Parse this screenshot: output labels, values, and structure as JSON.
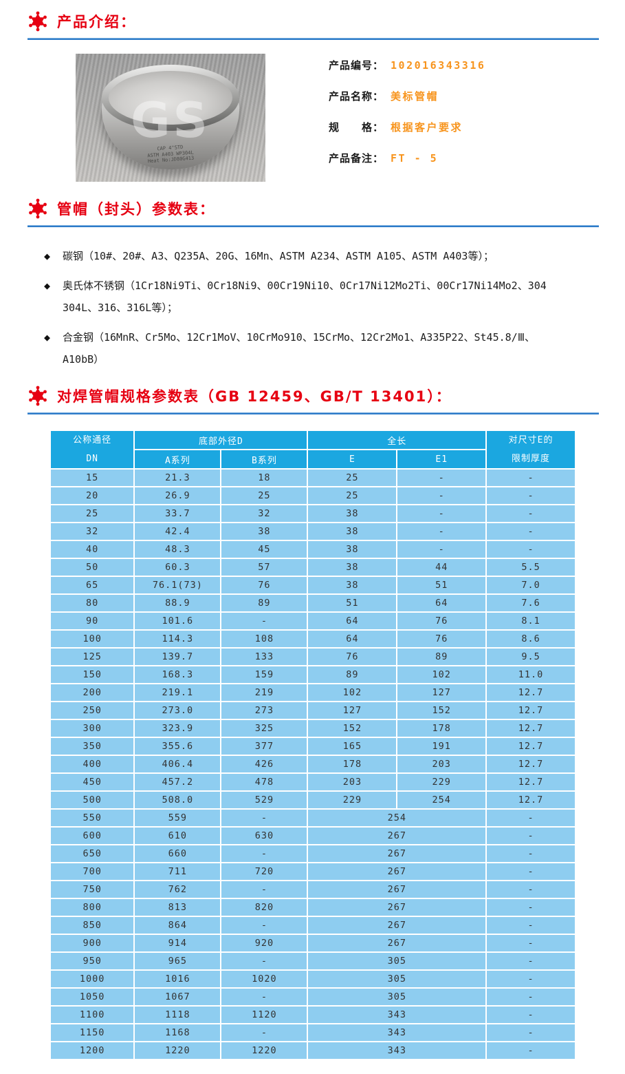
{
  "colors": {
    "accent_red": "#e60012",
    "divider_blue": "#2e7cc9",
    "value_orange": "#f7941d",
    "table_header_bg": "#1ba7e0",
    "table_row_bg": "#8ecdf0"
  },
  "intro": {
    "title": "产品介绍：",
    "photo": {
      "watermark": "GS",
      "engraving": [
        "CAP 4\"STD",
        "ASTM A403 WP304L",
        "Heat No:JD80G413"
      ]
    },
    "fields": [
      {
        "label": "产品编号：",
        "value": "102016343316"
      },
      {
        "label": "产品名称：",
        "value": "美标管帽"
      },
      {
        "label": "规　　格：",
        "value": "根据客户要求"
      },
      {
        "label": "产品备注：",
        "value": "FT - 5"
      }
    ]
  },
  "materials": {
    "title": "管帽（封头）参数表：",
    "marker": "◆",
    "bullets": [
      {
        "lines": [
          "碳钢（10#、20#、A3、Q235A、20G、16Mn、ASTM A234、ASTM A105、ASTM A403等）；"
        ]
      },
      {
        "lines": [
          "奥氏体不锈钢（1Cr18Ni9Ti、0Cr18Ni9、00Cr19Ni10、0Cr17Ni12Mo2Ti、00Cr17Ni14Mo2、304",
          "304L、316、316L等）；"
        ]
      },
      {
        "lines": [
          "合金钢（16MnR、Cr5Mo、12Cr1MoV、10CrMo910、15CrMo、12Cr2Mo1、A335P22、St45.8/Ⅲ、",
          "A10bB）"
        ]
      }
    ]
  },
  "spec": {
    "title": "对焊管帽规格参数表（GB 12459、GB/T 13401）：",
    "table": {
      "headers": {
        "col_dn": [
          "公称通径",
          "DN"
        ],
        "group_d": "底部外径D",
        "a": "A系列",
        "b": "B系列",
        "group_len": "全长",
        "e": "E",
        "e1": "E1",
        "col_t": [
          "对尺寸E的",
          "限制厚度"
        ]
      },
      "rows": [
        {
          "cells": [
            "15",
            "21.3",
            "18",
            "25",
            "-",
            "-"
          ],
          "merge_e": false
        },
        {
          "cells": [
            "20",
            "26.9",
            "25",
            "25",
            "-",
            "-"
          ],
          "merge_e": false
        },
        {
          "cells": [
            "25",
            "33.7",
            "32",
            "38",
            "-",
            "-"
          ],
          "merge_e": false
        },
        {
          "cells": [
            "32",
            "42.4",
            "38",
            "38",
            "-",
            "-"
          ],
          "merge_e": false
        },
        {
          "cells": [
            "40",
            "48.3",
            "45",
            "38",
            "-",
            "-"
          ],
          "merge_e": false
        },
        {
          "cells": [
            "50",
            "60.3",
            "57",
            "38",
            "44",
            "5.5"
          ],
          "merge_e": false
        },
        {
          "cells": [
            "65",
            "76.1(73)",
            "76",
            "38",
            "51",
            "7.0"
          ],
          "merge_e": false
        },
        {
          "cells": [
            "80",
            "88.9",
            "89",
            "51",
            "64",
            "7.6"
          ],
          "merge_e": false
        },
        {
          "cells": [
            "90",
            "101.6",
            "-",
            "64",
            "76",
            "8.1"
          ],
          "merge_e": false
        },
        {
          "cells": [
            "100",
            "114.3",
            "108",
            "64",
            "76",
            "8.6"
          ],
          "merge_e": false
        },
        {
          "cells": [
            "125",
            "139.7",
            "133",
            "76",
            "89",
            "9.5"
          ],
          "merge_e": false
        },
        {
          "cells": [
            "150",
            "168.3",
            "159",
            "89",
            "102",
            "11.0"
          ],
          "merge_e": false
        },
        {
          "cells": [
            "200",
            "219.1",
            "219",
            "102",
            "127",
            "12.7"
          ],
          "merge_e": false
        },
        {
          "cells": [
            "250",
            "273.0",
            "273",
            "127",
            "152",
            "12.7"
          ],
          "merge_e": false
        },
        {
          "cells": [
            "300",
            "323.9",
            "325",
            "152",
            "178",
            "12.7"
          ],
          "merge_e": false
        },
        {
          "cells": [
            "350",
            "355.6",
            "377",
            "165",
            "191",
            "12.7"
          ],
          "merge_e": false
        },
        {
          "cells": [
            "400",
            "406.4",
            "426",
            "178",
            "203",
            "12.7"
          ],
          "merge_e": false
        },
        {
          "cells": [
            "450",
            "457.2",
            "478",
            "203",
            "229",
            "12.7"
          ],
          "merge_e": false
        },
        {
          "cells": [
            "500",
            "508.0",
            "529",
            "229",
            "254",
            "12.7"
          ],
          "merge_e": false
        },
        {
          "cells": [
            "550",
            "559",
            "-",
            "254",
            "-"
          ],
          "merge_e": true
        },
        {
          "cells": [
            "600",
            "610",
            "630",
            "267",
            "-"
          ],
          "merge_e": true
        },
        {
          "cells": [
            "650",
            "660",
            "-",
            "267",
            "-"
          ],
          "merge_e": true
        },
        {
          "cells": [
            "700",
            "711",
            "720",
            "267",
            "-"
          ],
          "merge_e": true
        },
        {
          "cells": [
            "750",
            "762",
            "-",
            "267",
            "-"
          ],
          "merge_e": true
        },
        {
          "cells": [
            "800",
            "813",
            "820",
            "267",
            "-"
          ],
          "merge_e": true
        },
        {
          "cells": [
            "850",
            "864",
            "-",
            "267",
            "-"
          ],
          "merge_e": true
        },
        {
          "cells": [
            "900",
            "914",
            "920",
            "267",
            "-"
          ],
          "merge_e": true
        },
        {
          "cells": [
            "950",
            "965",
            "-",
            "305",
            "-"
          ],
          "merge_e": true
        },
        {
          "cells": [
            "1000",
            "1016",
            "1020",
            "305",
            "-"
          ],
          "merge_e": true
        },
        {
          "cells": [
            "1050",
            "1067",
            "-",
            "305",
            "-"
          ],
          "merge_e": true
        },
        {
          "cells": [
            "1100",
            "1118",
            "1120",
            "343",
            "-"
          ],
          "merge_e": true
        },
        {
          "cells": [
            "1150",
            "1168",
            "-",
            "343",
            "-"
          ],
          "merge_e": true
        },
        {
          "cells": [
            "1200",
            "1220",
            "1220",
            "343",
            "-"
          ],
          "merge_e": true
        }
      ]
    }
  }
}
